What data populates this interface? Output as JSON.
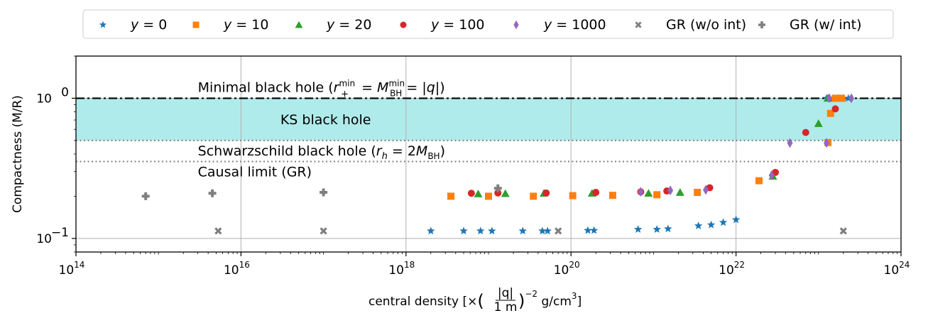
{
  "chart_data": {
    "type": "scatter",
    "xscale": "log",
    "yscale": "log",
    "xlim": [
      100000000000000.0,
      1e+24
    ],
    "ylim": [
      0.08,
      2.0
    ],
    "grid": true,
    "legend_position": "top",
    "x_ticks": [
      {
        "value": 100000000000000.0,
        "base": "10",
        "exp": "14"
      },
      {
        "value": 1e+16,
        "base": "10",
        "exp": "16"
      },
      {
        "value": 1e+18,
        "base": "10",
        "exp": "18"
      },
      {
        "value": 1e+20,
        "base": "10",
        "exp": "20"
      },
      {
        "value": 1e+22,
        "base": "10",
        "exp": "22"
      },
      {
        "value": 1e+24,
        "base": "10",
        "exp": "24"
      }
    ],
    "y_ticks": [
      {
        "value": 0.1,
        "base": "10",
        "exp": "−1"
      },
      {
        "value": 1.0,
        "base": "10",
        "exp": "0"
      }
    ],
    "ylabel": "Compactness (M/R)",
    "xlabel": {
      "prefix": "central density [×",
      "frac_num": "|q|",
      "frac_den": "1 m",
      "power": "−2",
      "unit": " g/cm",
      "unit_power": "3",
      "suffix": "]"
    },
    "colors": {
      "blue": "#1f77b4",
      "orange": "#ff7f0e",
      "green": "#2ca02c",
      "red": "#d62728",
      "purple": "#9467bd",
      "gray": "#7f7f7f",
      "band": "#b0ebeb"
    },
    "reference_lines": [
      {
        "name": "minimal-bh",
        "y": 1.0,
        "style": "dashdot",
        "label_lead": "Minimal black hole (",
        "label_math": "r₊ᵐⁱⁿ = Mᴮᴴᵐⁱⁿ = |q|",
        "label_tail": ")",
        "x_label": 3000000000000000.0
      },
      {
        "name": "schwarzschild",
        "y": 0.5,
        "style": "dotted",
        "label_lead": "Schwarzschild black hole (",
        "label_math": "rₕ = 2Mᴮᴴ",
        "label_tail": ")",
        "x_label": 3000000000000000.0
      },
      {
        "name": "causal-limit",
        "y": 0.354,
        "style": "dotted",
        "label_lead": "Causal limit (GR)",
        "label_math": "",
        "label_tail": "",
        "x_label": 3000000000000000.0
      }
    ],
    "band": {
      "name": "KS black hole",
      "y_low": 0.5,
      "y_high": 1.0,
      "label": "KS black hole",
      "x_label": 3e+16
    },
    "series": [
      {
        "name": "y=0",
        "legend_italic": "y",
        "legend_rest": " = 0",
        "marker": "star",
        "color": "#1f77b4",
        "x": [
          2e+18,
          5e+18,
          8e+18,
          1.1e+19,
          2.6e+19,
          4.5e+19,
          5.2e+19,
          1.6e+20,
          1.9e+20,
          6.5e+20,
          1.1e+21,
          1.5e+21,
          3.5e+21,
          5e+21,
          7e+21,
          1e+22,
          1.25e+23,
          1.5e+23,
          1.75e+23,
          2e+23,
          2.3e+23
        ],
        "y": [
          0.113,
          0.113,
          0.113,
          0.113,
          0.113,
          0.113,
          0.113,
          0.114,
          0.114,
          0.116,
          0.116,
          0.117,
          0.123,
          0.125,
          0.13,
          0.136,
          1.0,
          1.0,
          1.0,
          1.0,
          1.0
        ]
      },
      {
        "name": "y=10",
        "legend_italic": "y",
        "legend_rest": " = 10",
        "marker": "square",
        "color": "#ff7f0e",
        "x": [
          3.5e+18,
          1e+19,
          3.5e+19,
          1.05e+20,
          3.2e+20,
          1.1e+21,
          3.4e+21,
          1.9e+22,
          1.3e+23,
          1.4e+23,
          1.6e+23,
          1.75e+23,
          1.9e+23
        ],
        "y": [
          0.2,
          0.2,
          0.2,
          0.202,
          0.203,
          0.205,
          0.213,
          0.258,
          0.483,
          0.78,
          1.0,
          1.0,
          1.0
        ]
      },
      {
        "name": "y=20",
        "legend_italic": "y",
        "legend_rest": " = 20",
        "marker": "triangle",
        "color": "#2ca02c",
        "x": [
          7.5e+18,
          1.6e+19,
          4.7e+19,
          1.8e+20,
          8.7e+20,
          2.1e+21,
          2.8e+22,
          1e+23,
          1.3e+23
        ],
        "y": [
          0.208,
          0.209,
          0.21,
          0.21,
          0.21,
          0.213,
          0.278,
          0.66,
          1.0
        ]
      },
      {
        "name": "y=100",
        "legend_italic": "y",
        "legend_rest": " = 100",
        "marker": "circle",
        "color": "#d62728",
        "x": [
          6.2e+18,
          1.3e+19,
          5e+19,
          2e+20,
          7e+20,
          1.45e+21,
          4.8e+21,
          3e+22,
          7e+22,
          1.6e+23
        ],
        "y": [
          0.21,
          0.211,
          0.211,
          0.213,
          0.215,
          0.218,
          0.23,
          0.296,
          0.57,
          0.84
        ]
      },
      {
        "name": "y=1000",
        "legend_italic": "y",
        "legend_rest": " = 1000",
        "marker": "diamond",
        "color": "#9467bd",
        "x": [
          7e+20,
          1.6e+21,
          4.3e+21,
          2.7e+22,
          4.5e+22,
          1.25e+23,
          1.35e+23,
          2.5e+23
        ],
        "y": [
          0.215,
          0.22,
          0.222,
          0.282,
          0.48,
          0.48,
          1.0,
          1.0
        ]
      },
      {
        "name": "GR (w/o int)",
        "legend_italic": "",
        "legend_rest": "GR (w/o int)",
        "marker": "x",
        "color": "#7f7f7f",
        "x": [
          5300000000000000.0,
          1e+17,
          7e+19,
          2e+23
        ],
        "y": [
          0.113,
          0.113,
          0.113,
          0.113
        ]
      },
      {
        "name": "GR (w/ int)",
        "legend_italic": "",
        "legend_rest": "GR (w/ int)",
        "marker": "plus",
        "color": "#7f7f7f",
        "x": [
          700000000000000.0,
          4500000000000000.0,
          1e+17,
          1.3e+19
        ],
        "y": [
          0.2,
          0.21,
          0.213,
          0.228
        ]
      }
    ]
  }
}
